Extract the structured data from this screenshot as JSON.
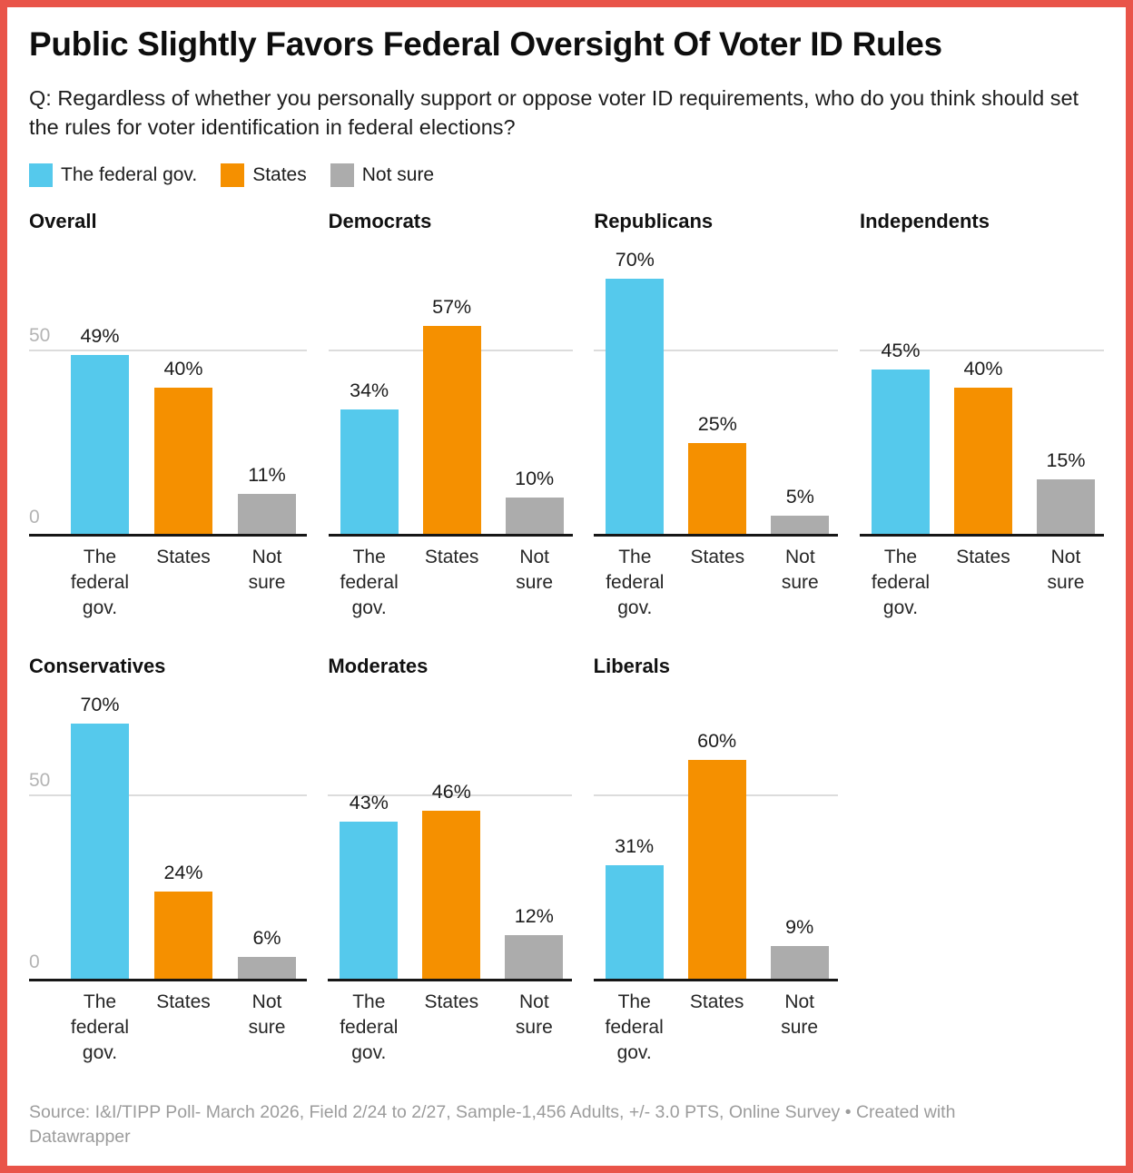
{
  "title": "Public Slightly Favors Federal Oversight Of Voter ID Rules",
  "subtitle": "Q: Regardless of whether you personally support or oppose voter ID requirements, who do you think should set the rules for voter identification in federal elections?",
  "legend": [
    {
      "label": "The federal gov.",
      "color": "#55C9EC"
    },
    {
      "label": "States",
      "color": "#F59000"
    },
    {
      "label": "Not sure",
      "color": "#ACACAC"
    }
  ],
  "chart_data": {
    "type": "bar",
    "layout": "small-multiples",
    "categories": [
      "The federal gov.",
      "States",
      "Not sure"
    ],
    "series_colors": [
      "#55C9EC",
      "#F59000",
      "#ACACAC"
    ],
    "groups": [
      {
        "name": "Overall",
        "values": [
          49,
          40,
          11
        ],
        "labels": [
          "49%",
          "40%",
          "11%"
        ]
      },
      {
        "name": "Democrats",
        "values": [
          34,
          57,
          10
        ],
        "labels": [
          "34%",
          "57%",
          "10%"
        ]
      },
      {
        "name": "Republicans",
        "values": [
          70,
          25,
          5
        ],
        "labels": [
          "70%",
          "25%",
          "5%"
        ]
      },
      {
        "name": "Independents",
        "values": [
          45,
          40,
          15
        ],
        "labels": [
          "45%",
          "40%",
          "15%"
        ]
      },
      {
        "name": "Conservatives",
        "values": [
          70,
          24,
          6
        ],
        "labels": [
          "70%",
          "24%",
          "6%"
        ]
      },
      {
        "name": "Moderates",
        "values": [
          43,
          46,
          12
        ],
        "labels": [
          "43%",
          "46%",
          "12%"
        ]
      },
      {
        "name": "Liberals",
        "values": [
          31,
          60,
          9
        ],
        "labels": [
          "31%",
          "60%",
          "9%"
        ]
      }
    ],
    "ylim": [
      0,
      82
    ],
    "yticks": [
      "50",
      "0"
    ],
    "grid": "horizontal line at 50 only",
    "legend_position": "top-left"
  },
  "colors": {
    "frame": "#E95449",
    "gridline": "#DCDCDC",
    "axis_line": "#161616",
    "tick_label": "#B4B4B4"
  },
  "footer": {
    "source": "Source: I&I/TIPP Poll- March 2026, Field 2/24 to 2/27, Sample-1,456 Adults, +/- 3.0 PTS, Online Survey  • Created with Datawrapper"
  }
}
